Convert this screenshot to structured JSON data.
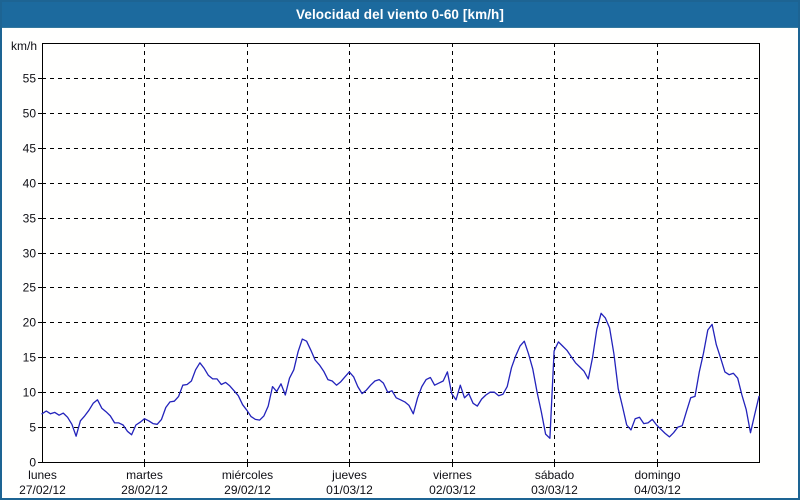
{
  "window": {
    "title": "Velocidad del viento 0-60 [km/h]"
  },
  "colors": {
    "frame_border": "#1d6493",
    "titlebar_bg": "#1c6a9e",
    "titlebar_text": "#ffffff",
    "panel_bg": "#fffffe",
    "line": "#2323bb",
    "grid": "#000000",
    "axis": "#000000",
    "tick_text": "#0e0e14"
  },
  "chart_data": {
    "type": "line",
    "title": "Velocidad del viento 0-60 [km/h]",
    "ylabel": "km/h",
    "ylim": [
      0,
      60
    ],
    "ytick_step": 5,
    "ytick_labels": [
      "0",
      "5",
      "10",
      "15",
      "20",
      "25",
      "30",
      "35",
      "40",
      "45",
      "50",
      "55"
    ],
    "grid": true,
    "x_unit": "hours",
    "hours_total": 168,
    "days": [
      {
        "name": "lunes",
        "date": "27/02/12"
      },
      {
        "name": "martes",
        "date": "28/02/12"
      },
      {
        "name": "miércoles",
        "date": "29/02/12"
      },
      {
        "name": "jueves",
        "date": "01/03/12"
      },
      {
        "name": "viernes",
        "date": "02/03/12"
      },
      {
        "name": "sábado",
        "date": "03/03/12"
      },
      {
        "name": "domingo",
        "date": "04/03/12"
      }
    ],
    "series": [
      {
        "name": "Velocidad del viento",
        "sampling": "hourly",
        "values": [
          6.9,
          7.3,
          6.9,
          7.1,
          6.7,
          7.0,
          6.4,
          5.4,
          3.7,
          5.9,
          6.6,
          7.4,
          8.4,
          8.9,
          7.7,
          7.2,
          6.6,
          5.6,
          5.6,
          5.3,
          4.4,
          3.9,
          5.3,
          5.7,
          6.2,
          5.9,
          5.5,
          5.4,
          6.1,
          7.8,
          8.6,
          8.7,
          9.4,
          11.0,
          11.1,
          11.6,
          13.2,
          14.2,
          13.4,
          12.4,
          11.9,
          11.9,
          11.1,
          11.4,
          10.9,
          10.2,
          9.5,
          8.2,
          7.4,
          6.5,
          6.1,
          6.0,
          6.6,
          8.0,
          10.8,
          10.1,
          11.2,
          9.6,
          12.0,
          13.2,
          15.8,
          17.6,
          17.3,
          16.0,
          14.6,
          13.9,
          13.0,
          11.8,
          11.6,
          11.0,
          11.5,
          12.2,
          12.9,
          12.2,
          10.8,
          9.8,
          10.3,
          11.0,
          11.6,
          11.8,
          11.3,
          10.0,
          10.2,
          9.2,
          8.9,
          8.6,
          8.1,
          6.9,
          9.2,
          10.8,
          11.8,
          12.1,
          11.0,
          11.3,
          11.6,
          12.9,
          9.8,
          8.9,
          11.0,
          9.2,
          9.8,
          8.4,
          8.0,
          9.0,
          9.6,
          10.0,
          10.0,
          9.5,
          9.7,
          10.8,
          13.5,
          15.2,
          16.6,
          17.3,
          15.5,
          13.3,
          10.0,
          7.2,
          4.0,
          3.4,
          15.9,
          17.2,
          16.6,
          16.0,
          15.1,
          14.2,
          13.6,
          13.0,
          11.9,
          15.0,
          19.0,
          21.3,
          20.6,
          19.2,
          15.5,
          10.5,
          8.0,
          5.3,
          4.6,
          6.2,
          6.4,
          5.5,
          5.6,
          6.1,
          5.3,
          4.7,
          4.1,
          3.6,
          4.2,
          5.0,
          5.2,
          7.2,
          9.2,
          9.4,
          12.9,
          15.6,
          18.9,
          19.7,
          16.8,
          14.9,
          12.9,
          12.5,
          12.7,
          12.0,
          9.6,
          7.5,
          4.2,
          6.8,
          9.4
        ]
      }
    ]
  }
}
